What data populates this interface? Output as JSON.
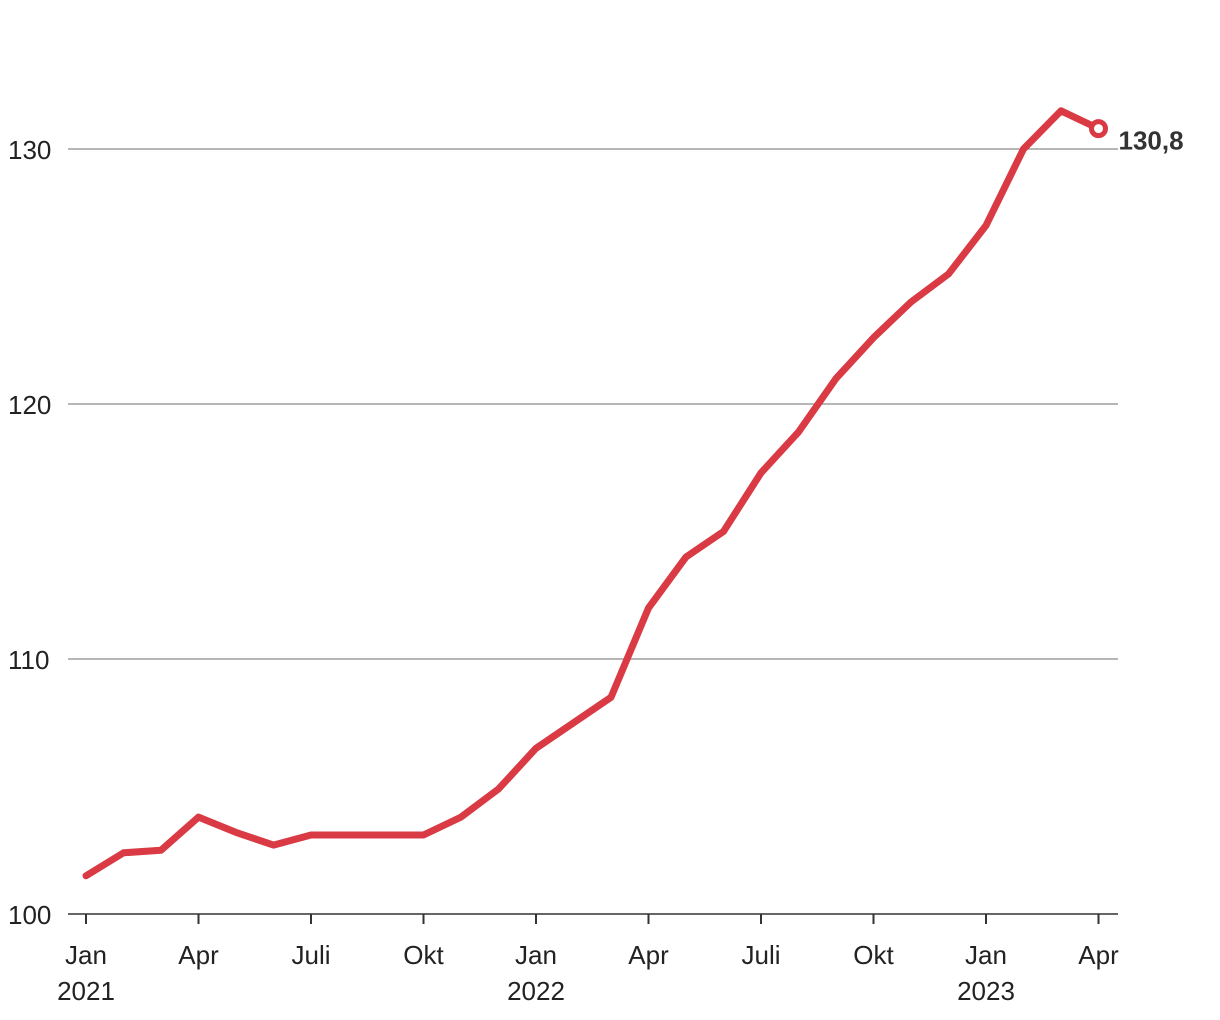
{
  "chart_data": {
    "type": "line",
    "title": "",
    "xlabel": "",
    "ylabel": "",
    "ylim": [
      100,
      132
    ],
    "yticks": [
      100,
      110,
      120,
      130
    ],
    "ytick_labels": [
      "100",
      "110",
      "120",
      "130"
    ],
    "grid": true,
    "xticks": [
      {
        "month": 0,
        "label": "Jan",
        "year": "2021"
      },
      {
        "month": 3,
        "label": "Apr",
        "year": ""
      },
      {
        "month": 6,
        "label": "Juli",
        "year": ""
      },
      {
        "month": 9,
        "label": "Okt",
        "year": ""
      },
      {
        "month": 12,
        "label": "Jan",
        "year": "2022"
      },
      {
        "month": 15,
        "label": "Apr",
        "year": ""
      },
      {
        "month": 18,
        "label": "Juli",
        "year": ""
      },
      {
        "month": 21,
        "label": "Okt",
        "year": ""
      },
      {
        "month": 24,
        "label": "Jan",
        "year": "2023"
      },
      {
        "month": 27,
        "label": "Apr",
        "year": ""
      }
    ],
    "x": [
      "2021-01",
      "2021-02",
      "2021-03",
      "2021-04",
      "2021-05",
      "2021-06",
      "2021-07",
      "2021-08",
      "2021-09",
      "2021-10",
      "2021-11",
      "2021-12",
      "2022-01",
      "2022-02",
      "2022-03",
      "2022-04",
      "2022-05",
      "2022-06",
      "2022-07",
      "2022-08",
      "2022-09",
      "2022-10",
      "2022-11",
      "2022-12",
      "2023-01",
      "2023-02",
      "2023-03",
      "2023-04"
    ],
    "series": [
      {
        "color": "#d93a44",
        "values": [
          101.5,
          102.4,
          102.5,
          103.8,
          103.2,
          102.7,
          103.1,
          103.1,
          103.1,
          103.1,
          103.8,
          104.9,
          106.5,
          107.5,
          108.5,
          112.0,
          114.0,
          115.0,
          117.3,
          118.9,
          121.0,
          122.6,
          124.0,
          125.1,
          127.0,
          130.0,
          131.5,
          130.8
        ]
      }
    ],
    "end_label": "130,8",
    "end_marker": "hollow-circle"
  }
}
